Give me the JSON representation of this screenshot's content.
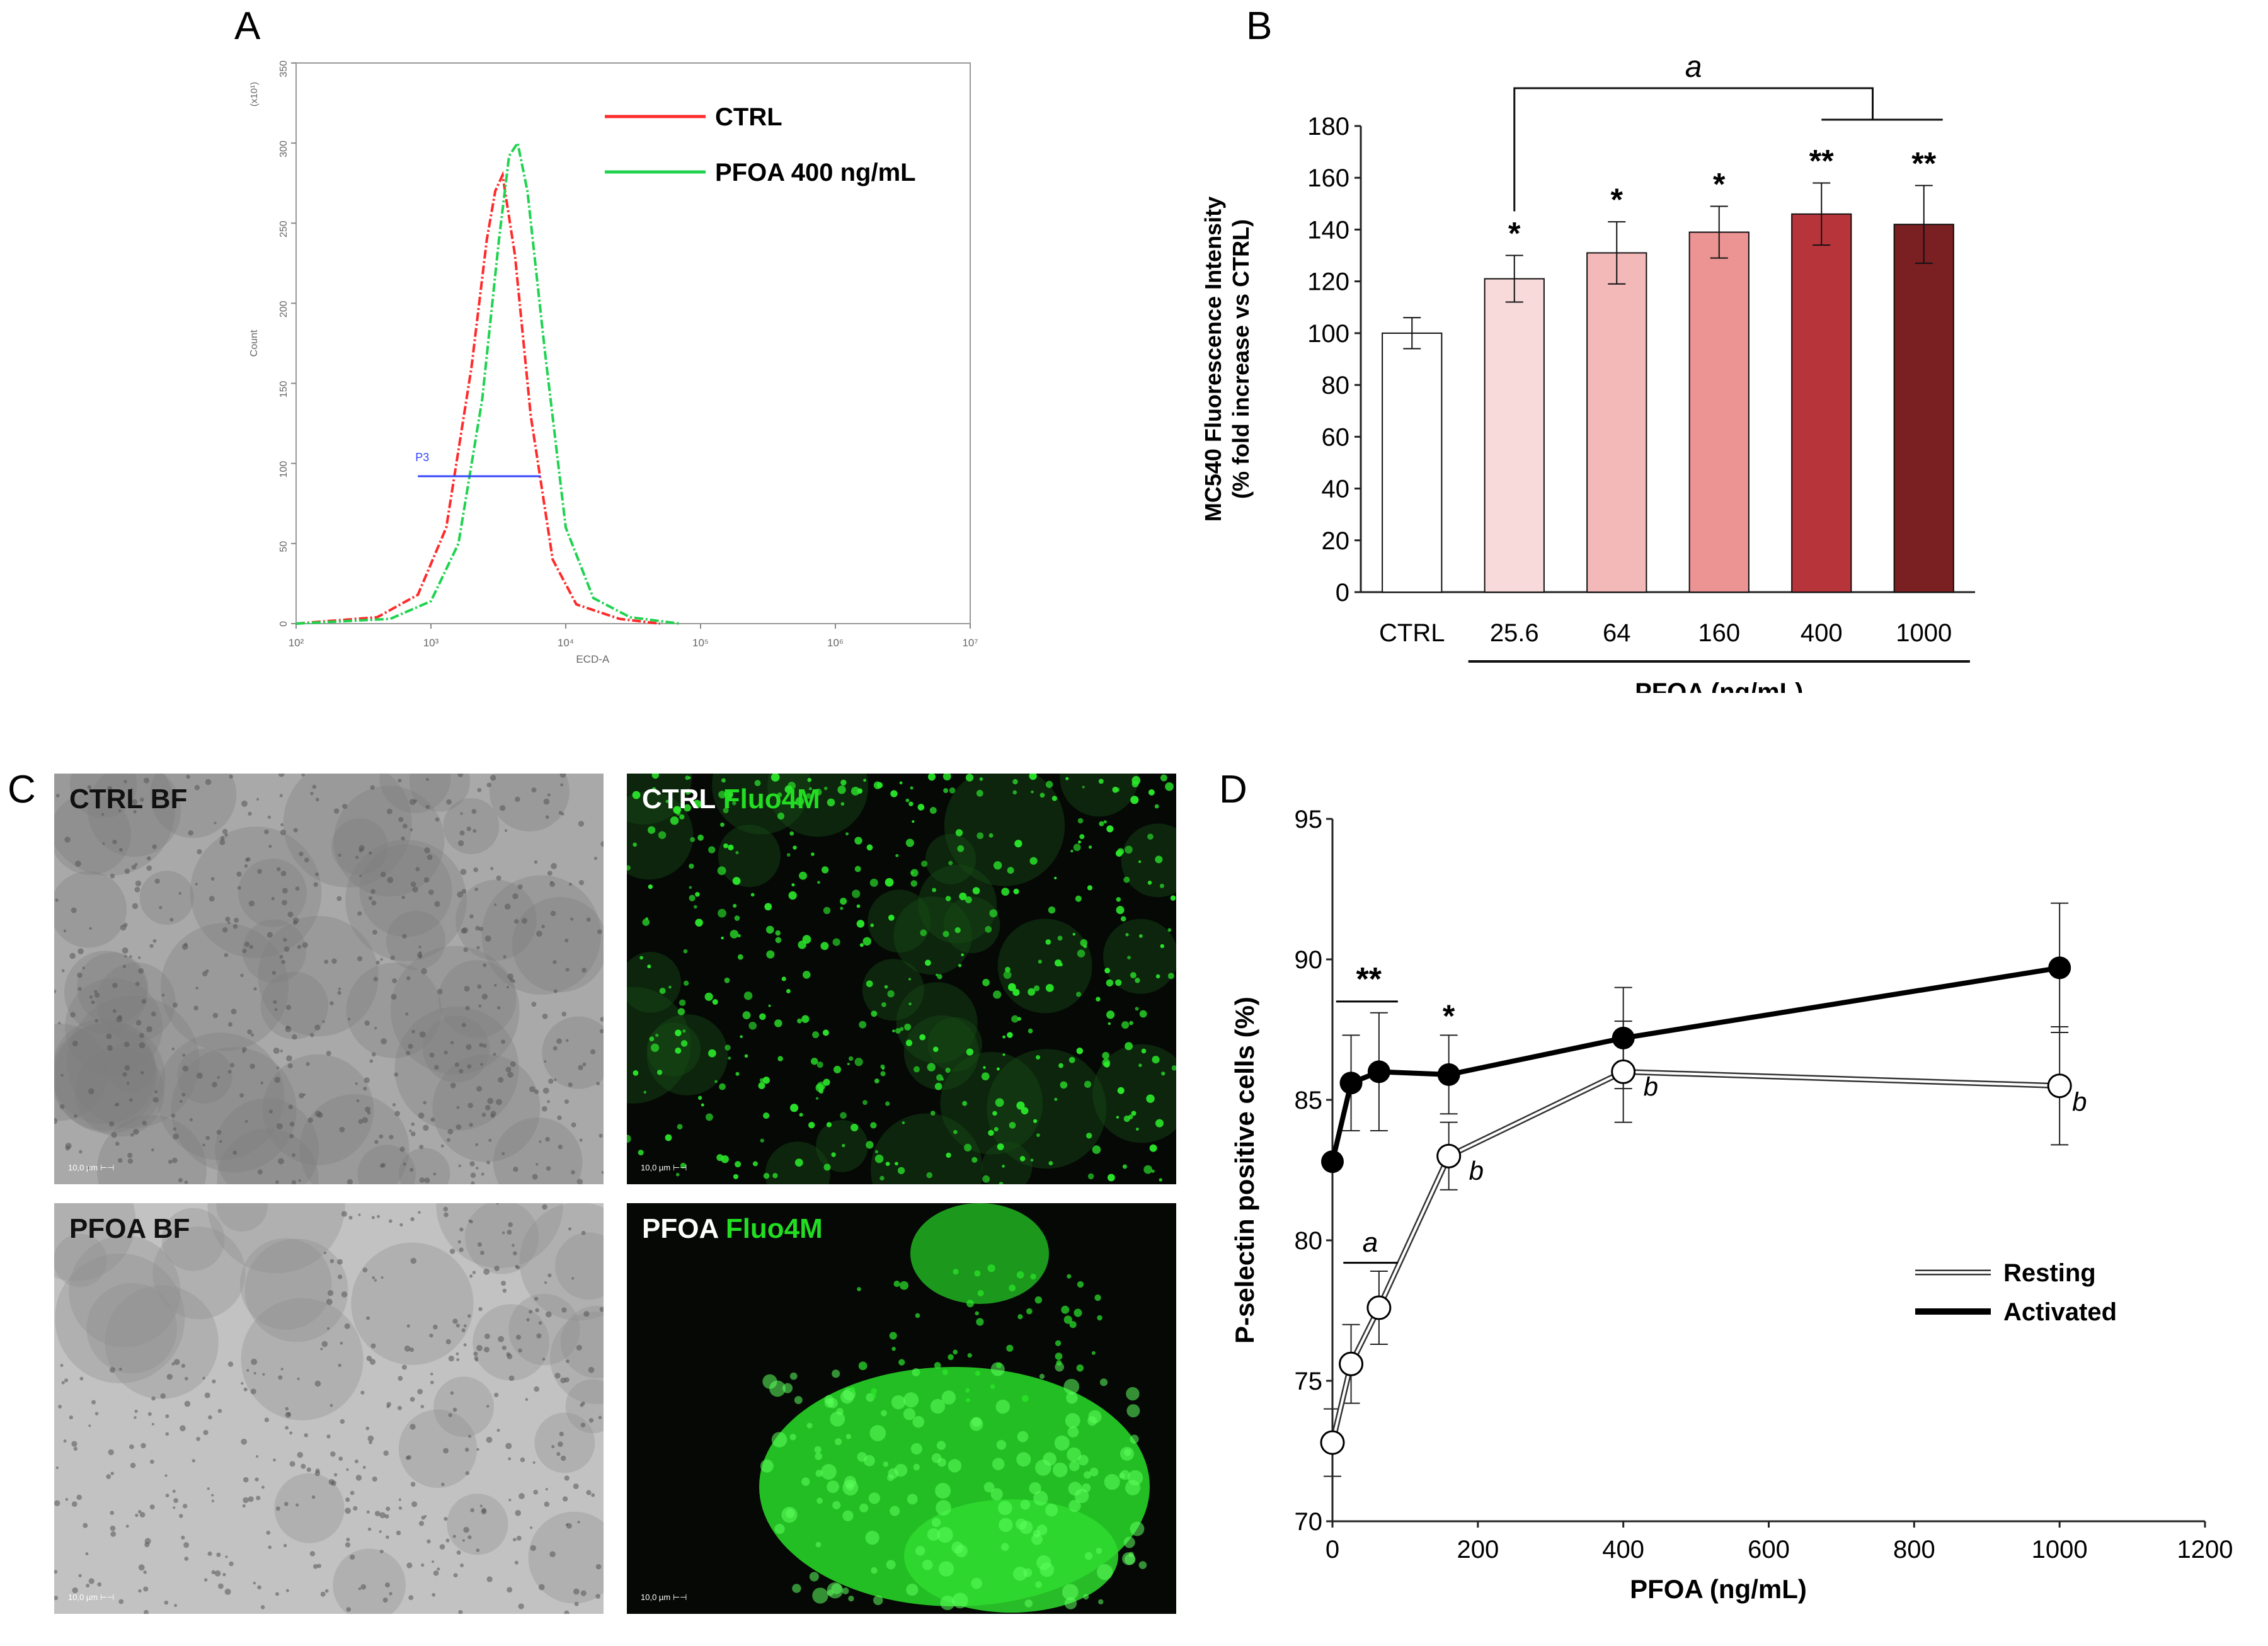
{
  "panels": {
    "a": "A",
    "b": "B",
    "c": "C",
    "d": "D"
  },
  "chart_data": [
    {
      "type": "line",
      "panel": "A",
      "legend": [
        "CTRL",
        "PFOA 400 ng/mL"
      ],
      "legend_position": "top-right",
      "ylabel": "Count",
      "yunit": "(x10¹)",
      "xlabel": "ECD-A",
      "yticks": [
        "0",
        "50",
        "100",
        "150",
        "200",
        "250",
        "300",
        "350"
      ],
      "xticks": [
        "10²",
        "10³",
        "10⁴",
        "10⁵",
        "10⁶",
        "10⁷"
      ],
      "xscale": "log",
      "xlim": [
        100,
        10000000
      ],
      "ylim": [
        0,
        350
      ],
      "series": [
        {
          "name": "CTRL",
          "color": "#ff2a2a",
          "x": [
            100,
            400,
            800,
            1300,
            2000,
            2600,
            3000,
            3400,
            4200,
            5500,
            8000,
            12000,
            25000,
            50000
          ],
          "y": [
            0,
            4,
            18,
            60,
            160,
            240,
            270,
            280,
            230,
            130,
            40,
            12,
            3,
            0
          ]
        },
        {
          "name": "PFOA 400 ng/mL",
          "color": "#1fd34f",
          "x": [
            100,
            500,
            1000,
            1600,
            2400,
            3200,
            3800,
            4400,
            5200,
            7000,
            10000,
            16000,
            30000,
            70000
          ],
          "y": [
            0,
            3,
            14,
            50,
            140,
            240,
            292,
            300,
            270,
            170,
            60,
            16,
            4,
            0
          ]
        }
      ],
      "gate": {
        "label": "P3",
        "x_from": 800,
        "x_to": 6500,
        "y": 92,
        "color": "#3344ff"
      }
    },
    {
      "type": "bar",
      "panel": "B",
      "categories": [
        "CTRL",
        "25.6",
        "64",
        "160",
        "400",
        "1000"
      ],
      "values": [
        100,
        121,
        131,
        139,
        146,
        142
      ],
      "errors": [
        6,
        9,
        12,
        10,
        12,
        15
      ],
      "significance": [
        "",
        "*",
        "*",
        "*",
        "**",
        "**"
      ],
      "colors": [
        "#ffffff",
        "#f9dada",
        "#f3b8b8",
        "#ec9494",
        "#b7353a",
        "#7a1f22"
      ],
      "ylabel_line1": "MC540 Fluorescence Intensity",
      "ylabel_line2": "(% fold increase vs CTRL)",
      "xlabel": "PFOA (ng/mL)",
      "ylim": [
        0,
        180
      ],
      "yticks": [
        "0",
        "20",
        "40",
        "60",
        "80",
        "100",
        "120",
        "140",
        "160",
        "180"
      ],
      "bracket_label": "a"
    },
    {
      "type": "line",
      "panel": "D",
      "x": [
        0,
        25.6,
        64,
        160,
        400,
        1000
      ],
      "series": [
        {
          "name": "Resting",
          "values": [
            72.8,
            75.6,
            77.6,
            83.0,
            86.0,
            85.5
          ],
          "errors": [
            1.2,
            1.4,
            1.3,
            1.2,
            1.8,
            2.1
          ],
          "marker": "open-circle",
          "line": "double"
        },
        {
          "name": "Activated",
          "values": [
            82.8,
            85.6,
            86.0,
            85.9,
            87.2,
            89.7
          ],
          "errors": [
            0,
            1.7,
            2.1,
            1.4,
            1.8,
            2.3
          ],
          "marker": "filled-circle",
          "line": "thick"
        }
      ],
      "xlabel": "PFOA (ng/mL)",
      "ylabel": "P-selectin positive cells (%)",
      "xlim": [
        0,
        1200
      ],
      "ylim": [
        70,
        95
      ],
      "xticks": [
        "0",
        "200",
        "400",
        "600",
        "800",
        "1000",
        "1200"
      ],
      "yticks": [
        "70",
        "75",
        "80",
        "85",
        "90",
        "95"
      ],
      "legend_position": "bottom-right",
      "annotations": {
        "double_star": "**",
        "single_star": "*",
        "a_label": "a",
        "b_label": "b"
      }
    }
  ],
  "micrographs": [
    {
      "name": "ctrl-bf",
      "label": "CTRL BF",
      "label2": "",
      "scale": "10,0 µm"
    },
    {
      "name": "ctrl-fluo",
      "label": "CTRL",
      "label2": "Fluo4M",
      "scale": "10,0 µm"
    },
    {
      "name": "pfoa-bf",
      "label": "PFOA BF",
      "label2": "",
      "scale": "10,0 µm"
    },
    {
      "name": "pfoa-fluo",
      "label": "PFOA",
      "label2": "Fluo4M",
      "scale": "10,0 µm"
    }
  ]
}
